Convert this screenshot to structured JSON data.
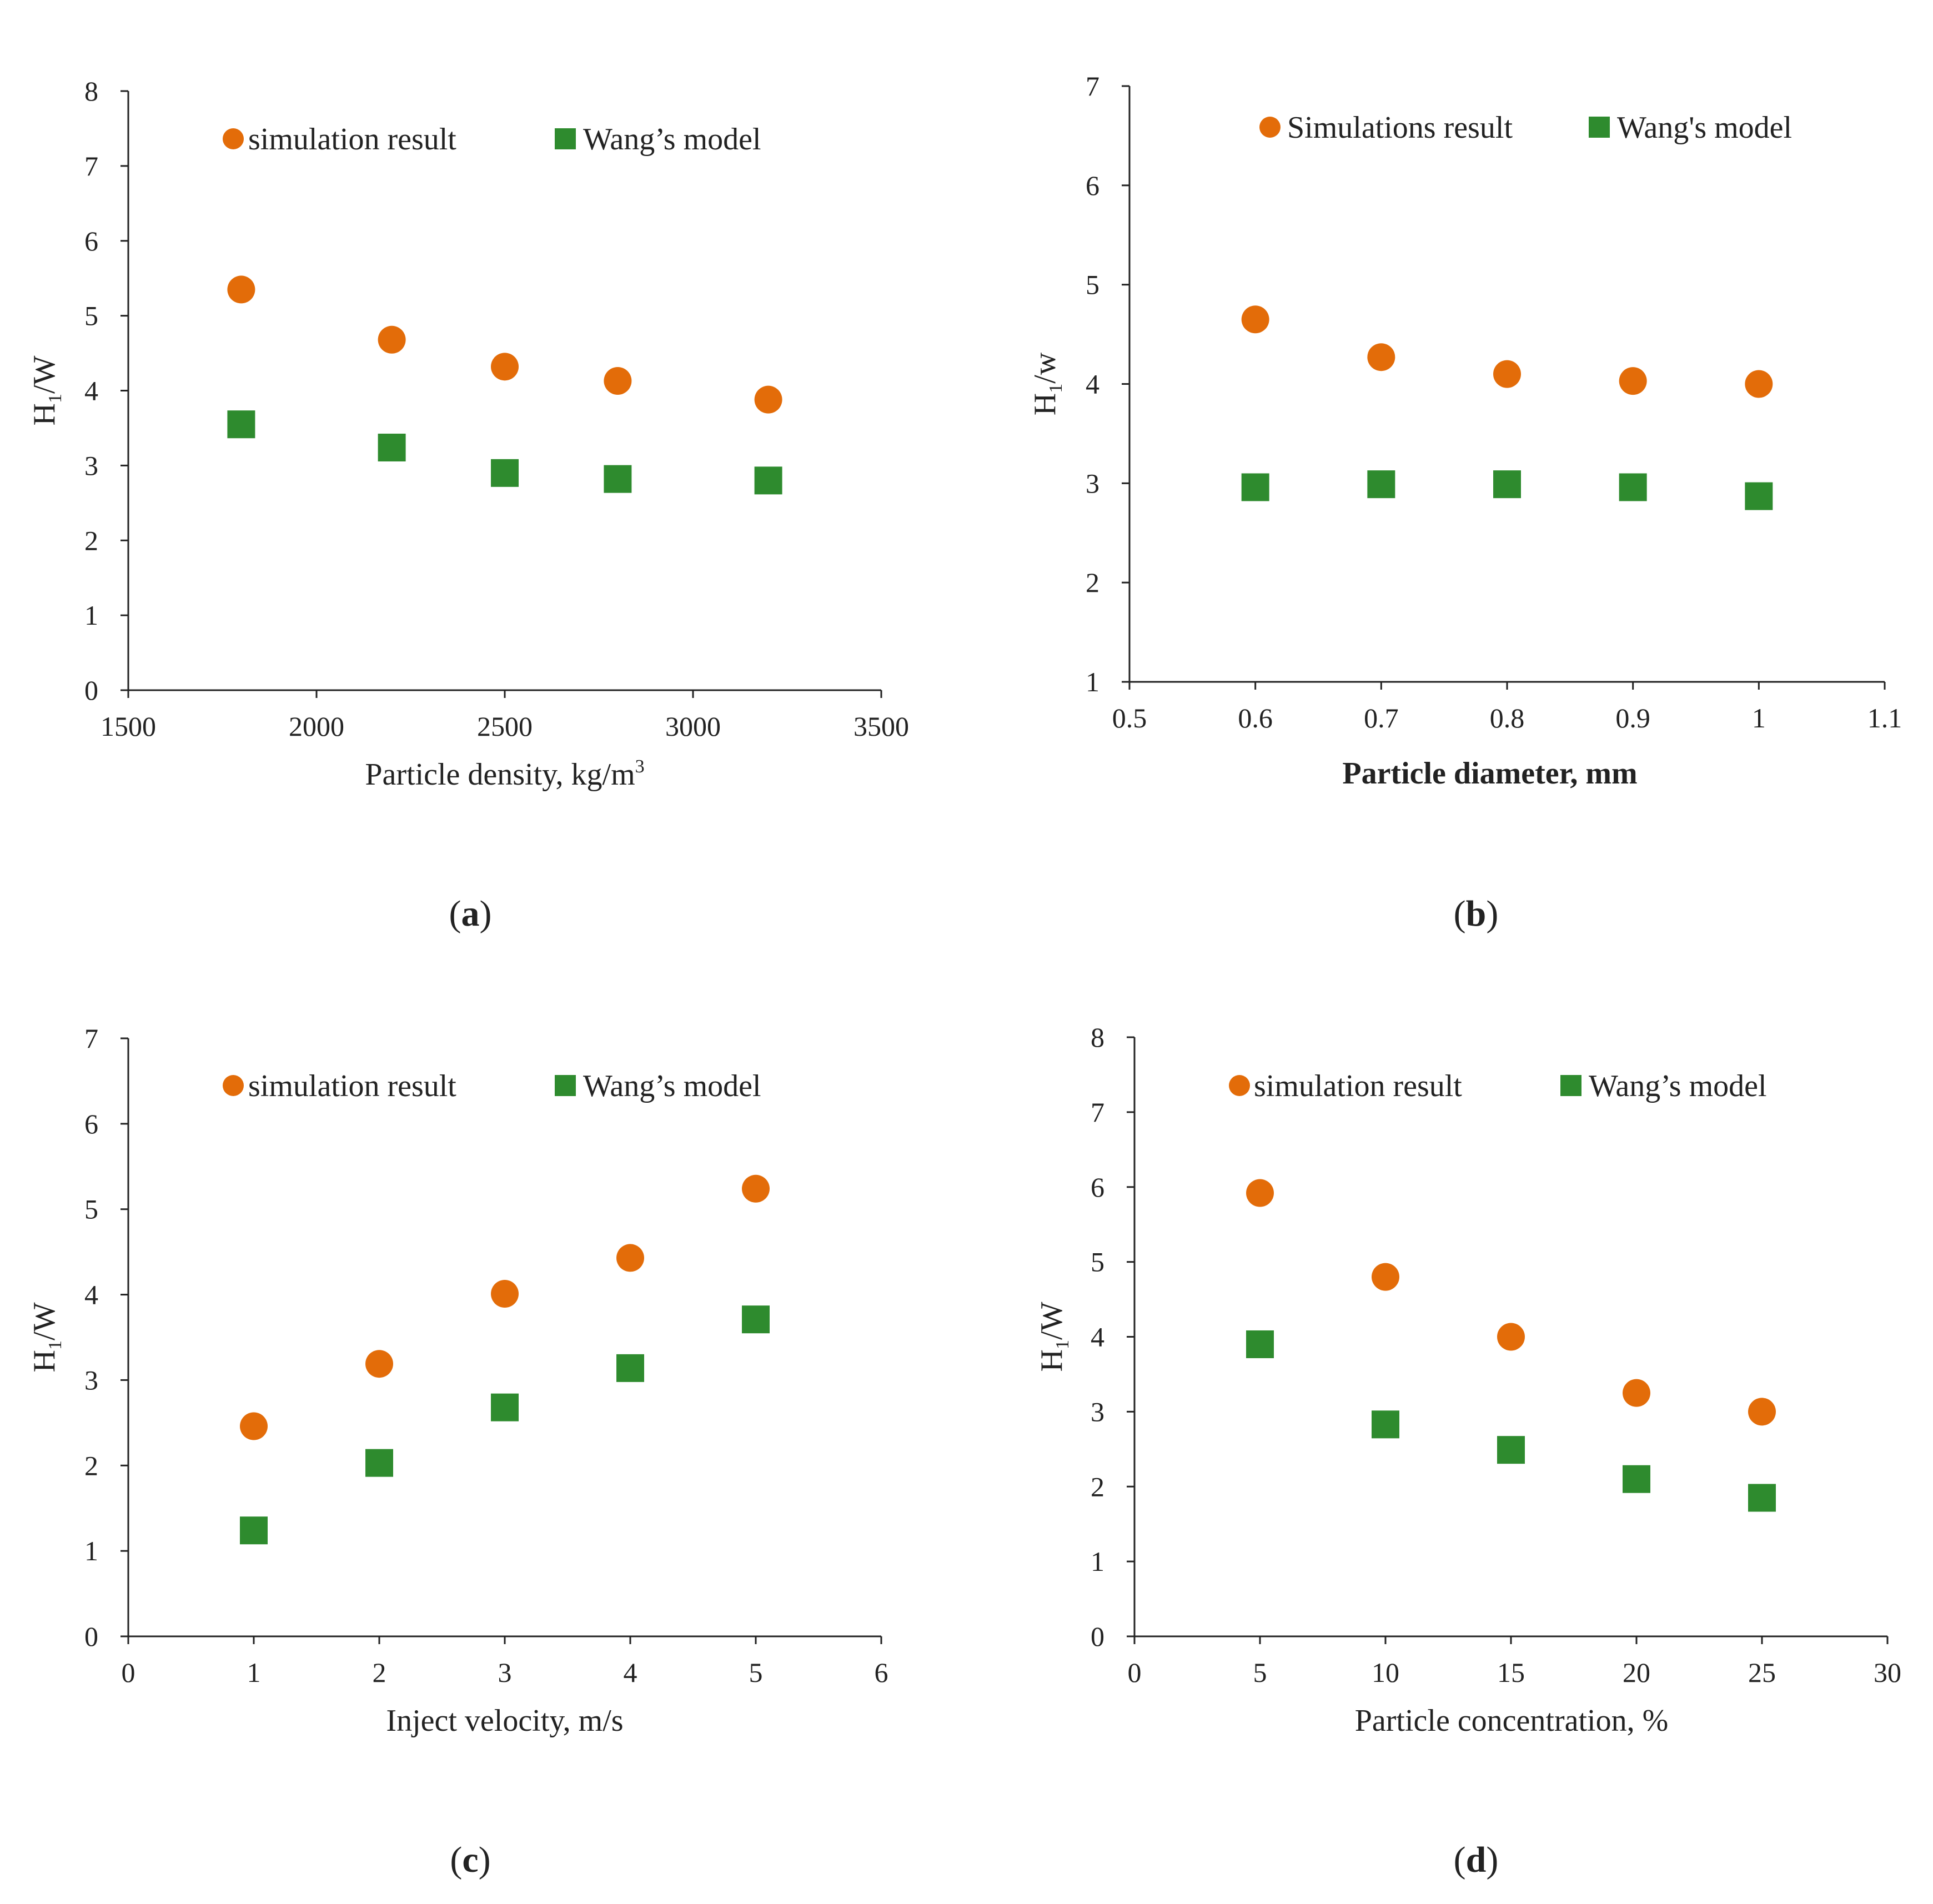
{
  "chart_data": [
    {
      "type": "scatter",
      "panel": "a",
      "caption_open": "(",
      "caption_letter": "a",
      "caption_close": ")",
      "xlabel": "Particle density,   kg/m",
      "xlabel_sup": "3",
      "ylabel_main": "H",
      "ylabel_sub": "1",
      "ylabel_rest": "/W",
      "xlim": [
        1500,
        3500
      ],
      "ylim": [
        0,
        8
      ],
      "xticks": [
        1500,
        2000,
        2500,
        3000,
        3500
      ],
      "xtick_labels": [
        "1500",
        "2000",
        "2500",
        "3000",
        "3500"
      ],
      "yticks": [
        0,
        1,
        2,
        3,
        4,
        5,
        6,
        7,
        8
      ],
      "ytick_labels": [
        "0",
        "1",
        "2",
        "3",
        "4",
        "5",
        "6",
        "7",
        "8"
      ],
      "series": [
        {
          "name": "simulation result",
          "marker": "circle",
          "x": [
            1800,
            2200,
            2500,
            2800,
            3200
          ],
          "y": [
            5.35,
            4.68,
            4.32,
            4.13,
            3.88
          ]
        },
        {
          "name": "Wang’s model",
          "marker": "square",
          "x": [
            1800,
            2200,
            2500,
            2800,
            3200
          ],
          "y": [
            3.55,
            3.24,
            2.9,
            2.82,
            2.8
          ]
        }
      ]
    },
    {
      "type": "scatter",
      "panel": "b",
      "caption_open": "(",
      "caption_letter": "b",
      "caption_close": ")",
      "xlabel": "Particle diameter, mm",
      "xlabel_sup": "",
      "ylabel_main": "H",
      "ylabel_sub": "1",
      "ylabel_rest": "/w",
      "xlim": [
        0.5,
        1.1
      ],
      "ylim": [
        1,
        7
      ],
      "xticks": [
        0.5,
        0.6,
        0.7,
        0.8,
        0.9,
        1.0,
        1.1
      ],
      "xtick_labels": [
        "0.5",
        "0.6",
        "0.7",
        "0.8",
        "0.9",
        "1",
        "1.1"
      ],
      "yticks": [
        1,
        2,
        3,
        4,
        5,
        6,
        7
      ],
      "ytick_labels": [
        "1",
        "2",
        "3",
        "4",
        "5",
        "6",
        "7"
      ],
      "series": [
        {
          "name": "Simulations result",
          "marker": "circle",
          "x": [
            0.6,
            0.7,
            0.8,
            0.9,
            1.0
          ],
          "y": [
            4.65,
            4.27,
            4.1,
            4.03,
            4.0
          ]
        },
        {
          "name": "Wang's model",
          "marker": "square",
          "x": [
            0.6,
            0.7,
            0.8,
            0.9,
            1.0
          ],
          "y": [
            2.96,
            2.99,
            2.99,
            2.96,
            2.87
          ]
        }
      ]
    },
    {
      "type": "scatter",
      "panel": "c",
      "caption_open": "(",
      "caption_letter": "c",
      "caption_close": ")",
      "xlabel": "Inject velocity,   m/s",
      "xlabel_sup": "",
      "ylabel_main": "H",
      "ylabel_sub": "1",
      "ylabel_rest": "/W",
      "xlim": [
        0,
        6
      ],
      "ylim": [
        0,
        7
      ],
      "xticks": [
        0,
        1,
        2,
        3,
        4,
        5,
        6
      ],
      "xtick_labels": [
        "0",
        "1",
        "2",
        "3",
        "4",
        "5",
        "6"
      ],
      "yticks": [
        0,
        1,
        2,
        3,
        4,
        5,
        6,
        7
      ],
      "ytick_labels": [
        "0",
        "1",
        "2",
        "3",
        "4",
        "5",
        "6",
        "7"
      ],
      "series": [
        {
          "name": "simulation result",
          "marker": "circle",
          "x": [
            1,
            2,
            3,
            4,
            5
          ],
          "y": [
            2.46,
            3.19,
            4.01,
            4.43,
            5.24
          ]
        },
        {
          "name": "Wang’s model",
          "marker": "square",
          "x": [
            1,
            2,
            3,
            4,
            5
          ],
          "y": [
            1.24,
            2.03,
            2.68,
            3.14,
            3.71
          ]
        }
      ]
    },
    {
      "type": "scatter",
      "panel": "d",
      "caption_open": "(",
      "caption_letter": "d",
      "caption_close": ")",
      "xlabel": "Particle concentration,   %",
      "xlabel_sup": "",
      "ylabel_main": "H",
      "ylabel_sub": "1",
      "ylabel_rest": "/W",
      "xlim": [
        0,
        30
      ],
      "ylim": [
        0,
        8
      ],
      "xticks": [
        0,
        5,
        10,
        15,
        20,
        25,
        30
      ],
      "xtick_labels": [
        "0",
        "5",
        "10",
        "15",
        "20",
        "25",
        "30"
      ],
      "yticks": [
        0,
        1,
        2,
        3,
        4,
        5,
        6,
        7,
        8
      ],
      "ytick_labels": [
        "0",
        "1",
        "2",
        "3",
        "4",
        "5",
        "6",
        "7",
        "8"
      ],
      "series": [
        {
          "name": "simulation result",
          "marker": "circle",
          "x": [
            5,
            10,
            15,
            20,
            25
          ],
          "y": [
            5.92,
            4.8,
            4.0,
            3.25,
            3.0
          ]
        },
        {
          "name": "Wang’s model",
          "marker": "square",
          "x": [
            5,
            10,
            15,
            20,
            25
          ],
          "y": [
            3.9,
            2.83,
            2.49,
            2.1,
            1.85
          ]
        }
      ]
    }
  ],
  "colors": {
    "simulation": "#E36C09",
    "model": "#2E8B2E",
    "axis": "#222222"
  }
}
